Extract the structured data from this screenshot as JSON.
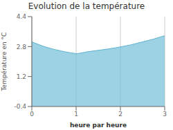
{
  "chart_data": {
    "type": "area",
    "title": "Evolution de la température",
    "x_label": "heure par heure",
    "y_label": "Température en °C",
    "x": [
      0,
      0.25,
      0.5,
      0.75,
      1.0,
      1.1,
      1.25,
      1.5,
      1.75,
      2.0,
      2.25,
      2.5,
      2.75,
      3.0
    ],
    "values": [
      3.05,
      2.82,
      2.65,
      2.52,
      2.42,
      2.45,
      2.52,
      2.6,
      2.68,
      2.78,
      2.9,
      3.05,
      3.2,
      3.38
    ],
    "color": "#5ab4d0",
    "xlim": [
      0,
      3
    ],
    "ylim": [
      -0.4,
      4.4
    ],
    "xticks": [
      0,
      1,
      2,
      3
    ],
    "yticks": [
      -0.4,
      1.2,
      2.8,
      4.4
    ],
    "grid": "x"
  }
}
